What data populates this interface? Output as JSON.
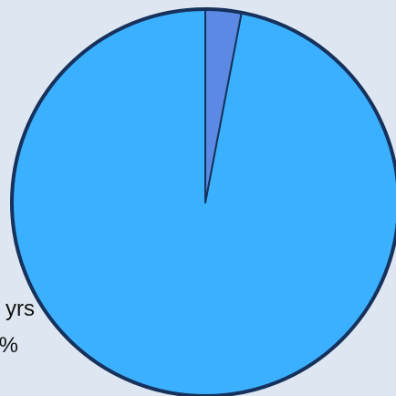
{
  "chart_data": {
    "type": "pie",
    "title": "",
    "slices": [
      {
        "label": "",
        "value": 97,
        "color": "#3bb0ff"
      },
      {
        "label": "",
        "value": 3,
        "color": "#5b89e3"
      }
    ],
    "visible_label_fragments": [
      "yrs",
      "%"
    ],
    "start_angle_deg": 0,
    "direction": "counterclockwise-from-top",
    "border_color": "#16325c",
    "legend": "none",
    "grid": false
  }
}
